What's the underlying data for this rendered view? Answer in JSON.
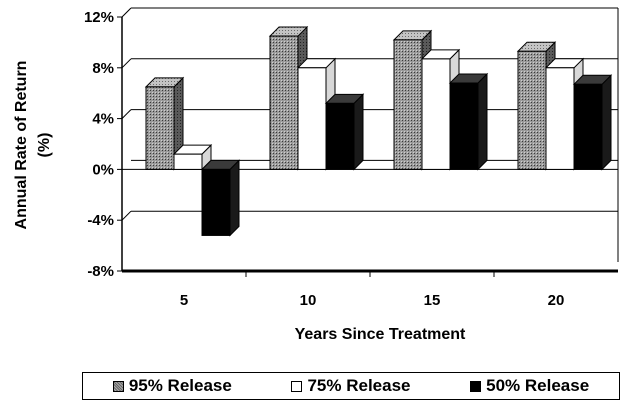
{
  "chart_data": {
    "type": "bar",
    "title": "",
    "xlabel": "Years Since Treatment",
    "ylabel_line1": "Annual Rate of Return",
    "ylabel_line2": "(%)",
    "categories": [
      "5",
      "10",
      "15",
      "20"
    ],
    "ylim": [
      -8,
      12
    ],
    "yticks": [
      12,
      8,
      4,
      0,
      -4,
      -8
    ],
    "ytick_labels": [
      "12%",
      "8%",
      "4%",
      "0%",
      "-4%",
      "-8%"
    ],
    "grid": true,
    "legend_position": "bottom",
    "series": [
      {
        "name": "95% Release",
        "values": [
          6.5,
          10.5,
          10.2,
          9.3
        ],
        "color": "#8a8a8a"
      },
      {
        "name": "75% Release",
        "values": [
          1.2,
          8.0,
          8.7,
          8.0
        ],
        "color": "#ffffff"
      },
      {
        "name": "50% Release",
        "values": [
          -5.2,
          5.2,
          6.8,
          6.7
        ],
        "color": "#000000"
      }
    ]
  }
}
